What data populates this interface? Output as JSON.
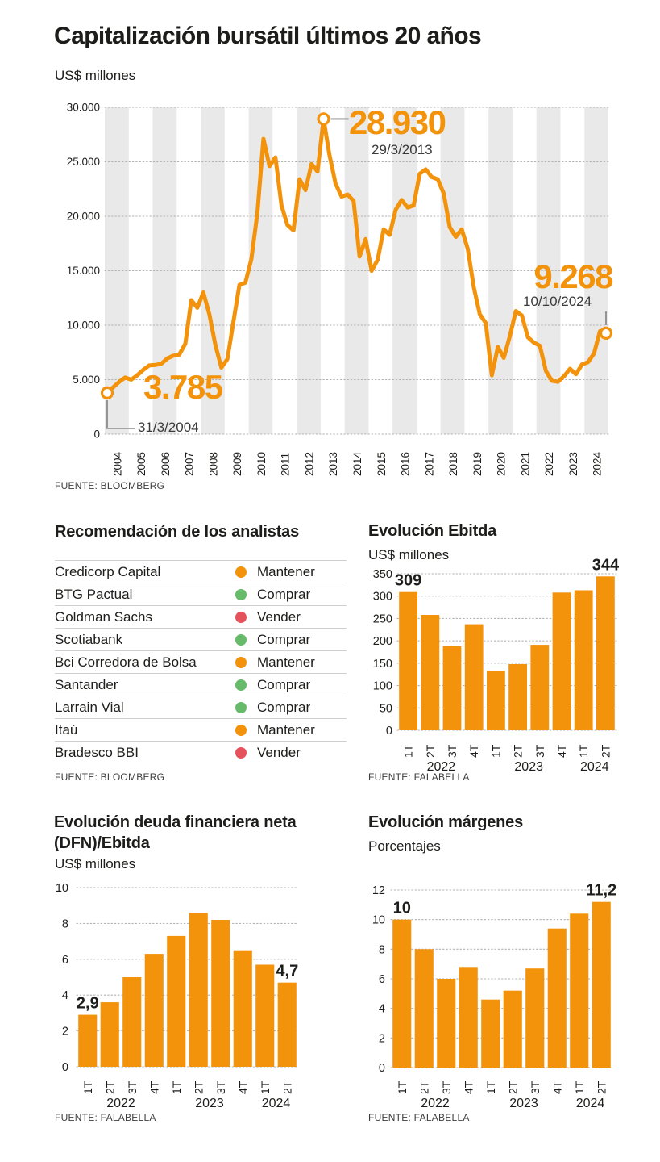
{
  "colors": {
    "accent": "#F3920B",
    "comprar_green": "#68BA6B",
    "vender_red": "#E6525C",
    "band": "#E9E9E9",
    "grid": "#B3B3B3",
    "text": "#1D1D1B"
  },
  "rating_colors": {
    "Mantener": "#F3920B",
    "Comprar": "#68BA6B",
    "Vender": "#E6525C"
  },
  "analysts": {
    "title": "Recomendación de los analistas",
    "rows": [
      {
        "name": "Credicorp Capital",
        "rating": "Mantener"
      },
      {
        "name": "BTG Pactual",
        "rating": "Comprar"
      },
      {
        "name": "Goldman Sachs",
        "rating": "Vender"
      },
      {
        "name": "Scotiabank",
        "rating": "Comprar"
      },
      {
        "name": "Bci Corredora de Bolsa",
        "rating": "Mantener"
      },
      {
        "name": "Santander",
        "rating": "Comprar"
      },
      {
        "name": "Larrain Vial",
        "rating": "Comprar"
      },
      {
        "name": "Itaú",
        "rating": "Mantener"
      },
      {
        "name": "Bradesco BBI",
        "rating": "Vender"
      }
    ],
    "source": "FUENTE: BLOOMBERG"
  },
  "chart_data": [
    {
      "id": "market_cap",
      "type": "line",
      "title": "Capitalización bursátil últimos 20 años",
      "subtitle": "US$ millones",
      "source": "FUENTE: BLOOMBERG",
      "ylim": [
        0,
        30000
      ],
      "yticks": [
        0,
        5000,
        10000,
        15000,
        20000,
        25000,
        30000
      ],
      "ytick_labels": [
        "0",
        "5.000",
        "10.000",
        "15.000",
        "20.000",
        "25.000",
        "30.000"
      ],
      "x_years": [
        "2004",
        "2005",
        "2006",
        "2007",
        "2008",
        "2009",
        "2010",
        "2011",
        "2012",
        "2013",
        "2014",
        "2015",
        "2016",
        "2017",
        "2018",
        "2019",
        "2020",
        "2021",
        "2022",
        "2023",
        "2024"
      ],
      "quarterly_values": [
        3785,
        4300,
        4800,
        5200,
        5000,
        5400,
        5900,
        6300,
        6350,
        6450,
        6950,
        7200,
        7300,
        8300,
        12300,
        11600,
        13000,
        11000,
        8200,
        6100,
        6900,
        10300,
        13700,
        13900,
        16100,
        20300,
        27100,
        24600,
        25400,
        21000,
        19200,
        18700,
        23400,
        22400,
        24800,
        24100,
        28930,
        25600,
        23000,
        21800,
        22000,
        21400,
        16300,
        17900,
        15000,
        16000,
        18800,
        18300,
        20600,
        21500,
        20800,
        21000,
        23900,
        24300,
        23600,
        23400,
        22100,
        19000,
        18100,
        18800,
        17000,
        13500,
        11000,
        10200,
        5400,
        8000,
        7000,
        9000,
        11300,
        10900,
        8900,
        8400,
        8100,
        5800,
        4900,
        4800,
        5300,
        6000,
        5500,
        6400,
        6600,
        7400,
        9450,
        9268
      ],
      "marker_indices": [
        0,
        36,
        83
      ],
      "annotations": {
        "start": {
          "label": "3.785",
          "date": "31/3/2004"
        },
        "peak": {
          "label": "28.930",
          "date": "29/3/2013"
        },
        "end": {
          "label": "9.268",
          "date": "10/10/2024"
        }
      }
    },
    {
      "id": "ebitda",
      "type": "bar",
      "title": "Evolución Ebitda",
      "subtitle": "US$ millones",
      "source": "FUENTE: FALABELLA",
      "categories": [
        "1T",
        "2T",
        "3T",
        "4T",
        "1T",
        "2T",
        "3T",
        "4T",
        "1T",
        "2T"
      ],
      "year_groups": [
        {
          "label": "2022",
          "from": 0,
          "to": 3
        },
        {
          "label": "2023",
          "from": 4,
          "to": 7
        },
        {
          "label": "2024",
          "from": 8,
          "to": 9
        }
      ],
      "values": [
        309,
        258,
        188,
        237,
        133,
        148,
        191,
        308,
        313,
        344
      ],
      "data_labels": [
        {
          "index": 0,
          "text": "309"
        },
        {
          "index": 9,
          "text": "344"
        }
      ],
      "ylim": [
        0,
        350
      ],
      "yticks": [
        0,
        50,
        100,
        150,
        200,
        250,
        300,
        350
      ]
    },
    {
      "id": "dfn",
      "type": "bar",
      "title": "Evolución deuda financiera neta (DFN)/Ebitda",
      "subtitle": "US$ millones",
      "source": "FUENTE: FALABELLA",
      "categories": [
        "1T",
        "2T",
        "3T",
        "4T",
        "1T",
        "2T",
        "3T",
        "4T",
        "1T",
        "2T"
      ],
      "year_groups": [
        {
          "label": "2022",
          "from": 0,
          "to": 3
        },
        {
          "label": "2023",
          "from": 4,
          "to": 7
        },
        {
          "label": "2024",
          "from": 8,
          "to": 9
        }
      ],
      "values": [
        2.9,
        3.6,
        5.0,
        6.3,
        7.3,
        8.6,
        8.2,
        6.5,
        5.7,
        4.7
      ],
      "data_labels": [
        {
          "index": 0,
          "text": "2,9"
        },
        {
          "index": 9,
          "text": "4,7"
        }
      ],
      "ylim": [
        0,
        10
      ],
      "yticks": [
        0,
        2,
        4,
        6,
        8,
        10
      ]
    },
    {
      "id": "margins",
      "type": "bar",
      "title": "Evolución márgenes",
      "subtitle": "Porcentajes",
      "source": "FUENTE: FALABELLA",
      "categories": [
        "1T",
        "2T",
        "3T",
        "4T",
        "1T",
        "2T",
        "3T",
        "4T",
        "1T",
        "2T"
      ],
      "year_groups": [
        {
          "label": "2022",
          "from": 0,
          "to": 3
        },
        {
          "label": "2023",
          "from": 4,
          "to": 7
        },
        {
          "label": "2024",
          "from": 8,
          "to": 9
        }
      ],
      "values": [
        10,
        8.0,
        6.0,
        6.8,
        4.6,
        5.2,
        6.7,
        9.4,
        10.4,
        11.2
      ],
      "data_labels": [
        {
          "index": 0,
          "text": "10"
        },
        {
          "index": 9,
          "text": "11,2"
        }
      ],
      "ylim": [
        0,
        12
      ],
      "yticks": [
        0,
        2,
        4,
        6,
        8,
        10,
        12
      ]
    }
  ]
}
